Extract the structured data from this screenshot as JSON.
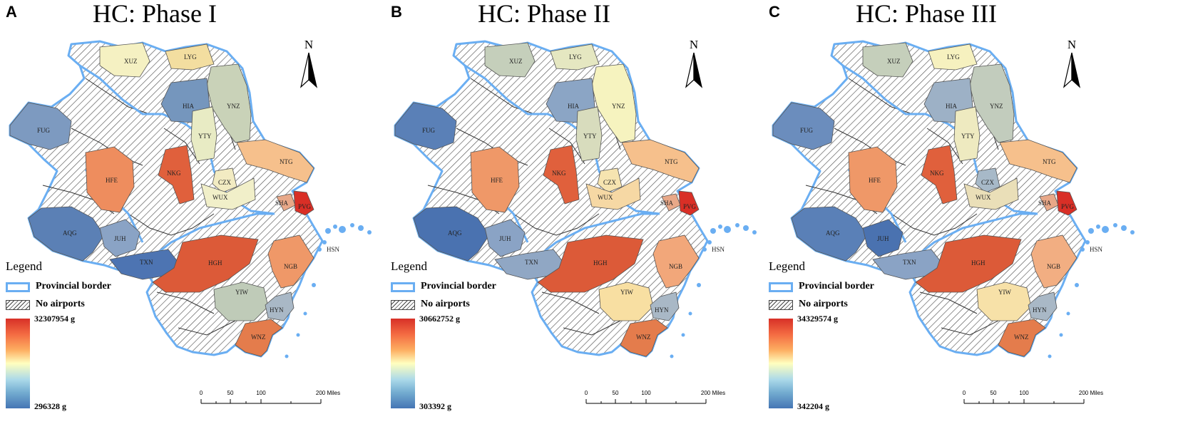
{
  "panels": [
    {
      "letter": "A",
      "title": "HC: Phase I",
      "legend": {
        "title": "Legend",
        "provincial_border": "Provincial border",
        "no_airports": "No airports",
        "max_label": "32307954 g",
        "min_label": "296328 g"
      },
      "north_label": "N",
      "scale": {
        "ticks": [
          "0",
          "50",
          "100",
          "200 Miles"
        ]
      },
      "city_colors": {
        "XUZ": "#f5f1c2",
        "LYG": "#f3dea0",
        "YNZ": "#c9d2b8",
        "HIA": "#7596bd",
        "FUG": "#7d9ac0",
        "YTY": "#e8ebc4",
        "NTG": "#f6c08c",
        "HFE": "#ee8d5e",
        "NKG": "#e0603c",
        "CZX": "#f2ebc2",
        "WUX": "#f1efc9",
        "SHA": "#e8a888",
        "PVG": "#d92f26",
        "AQG": "#5b80b5",
        "JUH": "#8aa3c5",
        "TXN": "#4d74b2",
        "HGH": "#dc5a38",
        "NGB": "#ef9868",
        "YIW": "#bfcbb8",
        "HYN": "#a9b8c6",
        "WNZ": "#e47c4c",
        "HSN": "#a2b2c6"
      }
    },
    {
      "letter": "B",
      "title": "HC: Phase II",
      "legend": {
        "title": "Legend",
        "provincial_border": "Provincial border",
        "no_airports": "No airports",
        "max_label": "30662752 g",
        "min_label": "303392 g"
      },
      "north_label": "N",
      "scale": {
        "ticks": [
          "0",
          "50",
          "100",
          "200 Miles"
        ]
      },
      "city_colors": {
        "XUZ": "#c5cfbb",
        "LYG": "#e5e7c1",
        "YNZ": "#f6f3bf",
        "HIA": "#8ba5c5",
        "FUG": "#5a80b7",
        "YTY": "#d8dcbd",
        "NTG": "#f6c08c",
        "HFE": "#ef9868",
        "NKG": "#e0603c",
        "CZX": "#f6e4b0",
        "WUX": "#f6d8a4",
        "SHA": "#e8a888",
        "PVG": "#d92f26",
        "AQG": "#4a72b0",
        "JUH": "#8aa3c5",
        "TXN": "#90a7c4",
        "HGH": "#dc5a38",
        "NGB": "#f2a77a",
        "YIW": "#f8dfa2",
        "HYN": "#a9b8c6",
        "WNZ": "#e47c4c",
        "HSN": "#a2b2c6"
      }
    },
    {
      "letter": "C",
      "title": "HC: Phase III",
      "legend": {
        "title": "Legend",
        "provincial_border": "Provincial border",
        "no_airports": "No airports",
        "max_label": "34329574 g",
        "min_label": "342204 g"
      },
      "north_label": "N",
      "scale": {
        "ticks": [
          "0",
          "50",
          "100",
          "200 Miles"
        ]
      },
      "city_colors": {
        "XUZ": "#c5cfbb",
        "LYG": "#f6f1bf",
        "YNZ": "#c2ccbd",
        "HIA": "#9db1c6",
        "FUG": "#6b8dbd",
        "YTY": "#eeeac0",
        "NTG": "#f6c08c",
        "HFE": "#ef9868",
        "NKG": "#e0603c",
        "CZX": "#a7b9c8",
        "WUX": "#eadfb8",
        "SHA": "#e8a888",
        "PVG": "#d92f26",
        "AQG": "#5a80b7",
        "JUH": "#4a72b0",
        "TXN": "#8aa3c5",
        "HGH": "#dc5a38",
        "NGB": "#f2ae82",
        "YIW": "#f7e1a8",
        "HYN": "#a9b8c6",
        "WNZ": "#e47c4c",
        "HSN": "#a2b2c6"
      }
    }
  ]
}
